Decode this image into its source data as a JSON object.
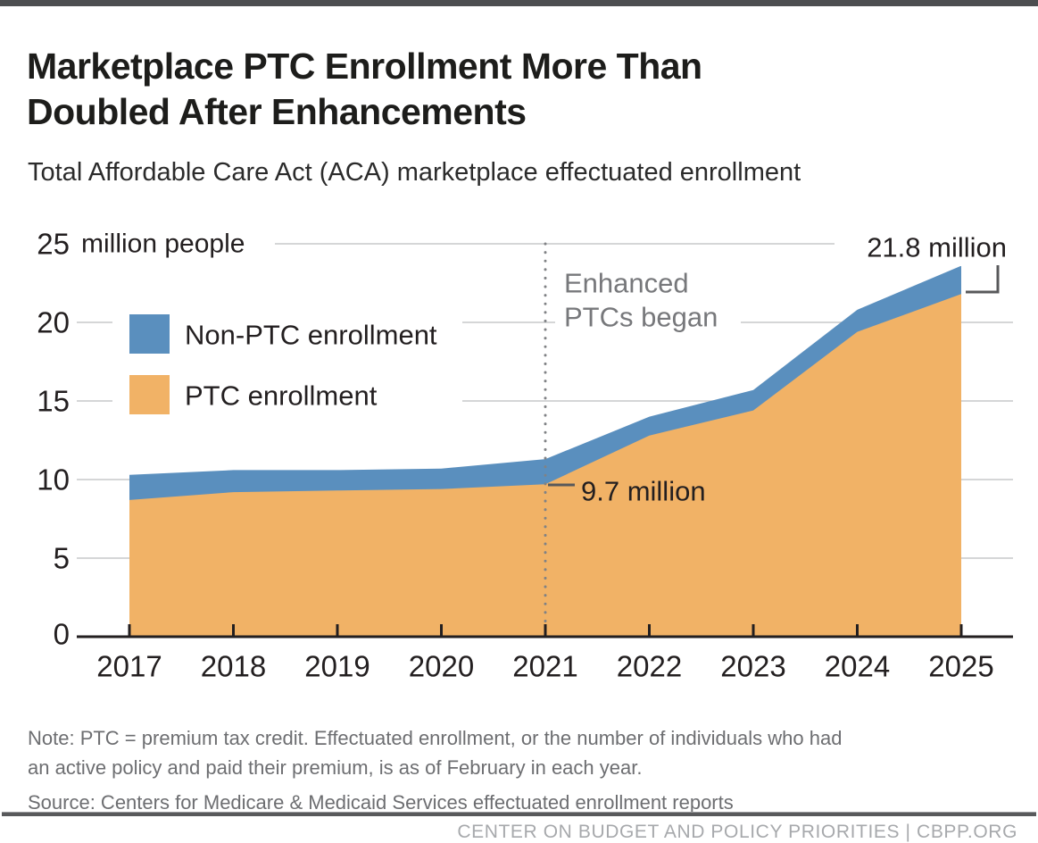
{
  "header": {
    "title_lines": [
      "Marketplace PTC Enrollment More Than",
      "Doubled After Enhancements"
    ],
    "subtitle": "Total Affordable Care Act (ACA) marketplace effectuated enrollment"
  },
  "chart_data": {
    "type": "area",
    "stacked": true,
    "title": "Marketplace PTC Enrollment More Than Doubled After Enhancements",
    "subtitle": "Total Affordable Care Act (ACA) marketplace effectuated enrollment",
    "x": [
      2017,
      2018,
      2019,
      2020,
      2021,
      2022,
      2023,
      2024,
      2025
    ],
    "series": [
      {
        "name": "PTC enrollment",
        "color": "#f1b266",
        "values": [
          8.7,
          9.2,
          9.3,
          9.4,
          9.7,
          12.8,
          14.4,
          19.4,
          21.8
        ]
      },
      {
        "name": "Non-PTC enrollment",
        "color": "#5a8fbe",
        "values": [
          1.6,
          1.4,
          1.3,
          1.3,
          1.6,
          1.2,
          1.3,
          1.4,
          1.8
        ]
      }
    ],
    "totals": [
      10.3,
      10.6,
      10.6,
      10.7,
      11.3,
      14.0,
      15.7,
      20.8,
      23.6
    ],
    "ylim": [
      0,
      25
    ],
    "yticks": [
      0,
      5,
      10,
      15,
      20,
      25
    ],
    "ytick_unit_label": "million people",
    "grid": true,
    "legend_position": "upper-left-inside",
    "legend": [
      {
        "label": "Non-PTC enrollment",
        "color": "#5a8fbe"
      },
      {
        "label": "PTC enrollment",
        "color": "#f1b266"
      }
    ],
    "annotations": [
      {
        "id": "enhanced-ptcs",
        "text_lines": [
          "Enhanced",
          "PTCs began"
        ],
        "x": 2021,
        "style": "dotted-vline-label",
        "color": "#77787b"
      },
      {
        "id": "ptc-2021",
        "text": "9.7 million",
        "x": 2021,
        "y": 9.7
      },
      {
        "id": "ptc-2025",
        "text": "21.8 million",
        "x": 2025,
        "y": 21.8
      }
    ]
  },
  "footer": {
    "note_lines": [
      "Note: PTC = premium tax credit. Effectuated enrollment, or the number of individuals who had",
      "an active policy and paid their premium, is as of February in each year."
    ],
    "source": "Source: Centers for Medicare & Medicaid Services effectuated enrollment reports",
    "credit": "CENTER ON BUDGET AND POLICY PRIORITIES | CBPP.ORG"
  },
  "colors": {
    "non_ptc_blue": "#5a8fbe",
    "ptc_orange": "#f1b266",
    "gridline": "#c7c8ca",
    "axis": "#231f20",
    "annotation_gray": "#77787b",
    "callout_gray": "#58595b",
    "topbar": "#4d4e50"
  }
}
